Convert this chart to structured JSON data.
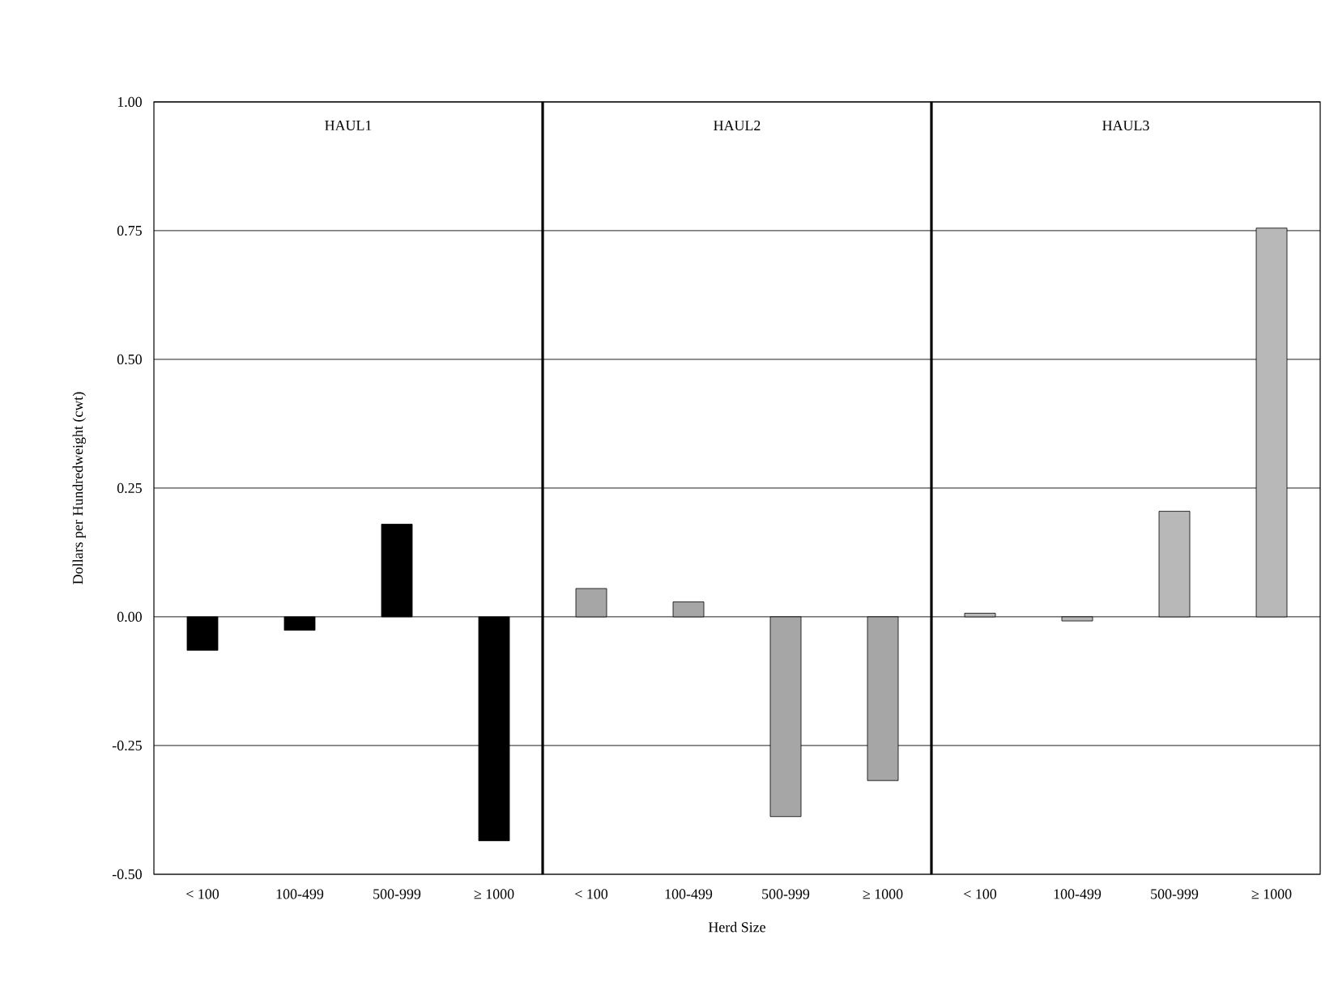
{
  "chart_data": [
    {
      "type": "bar",
      "title": "HAUL1",
      "ylabel": "Dollars  per Hundredweight  (cwt)",
      "categories": [
        "< 100",
        "100-499",
        "500-999",
        "≥ 1000"
      ],
      "values": [
        -0.065,
        -0.026,
        0.18,
        -0.435
      ],
      "color": "#000000",
      "ylim": [
        -0.5,
        1.0
      ],
      "yticks": [
        {
          "value": -0.5,
          "label": "-0.50"
        },
        {
          "value": -0.25,
          "label": "-0.25"
        },
        {
          "value": 0,
          "label": "0.00"
        },
        {
          "value": 0.25,
          "label": "0.25"
        },
        {
          "value": 0.5,
          "label": "0.50"
        },
        {
          "value": 0.75,
          "label": "0.75"
        },
        {
          "value": 1.0,
          "label": "1.00"
        }
      ],
      "grid": "y"
    },
    {
      "type": "bar",
      "title": "HAUL2",
      "xlabel": "Herd Size",
      "categories": [
        "< 100",
        "100-499",
        "500-999",
        "≥ 1000"
      ],
      "values": [
        0.055,
        0.029,
        -0.388,
        -0.318
      ],
      "color": "#a6a6a6",
      "ylim": [
        -0.5,
        1.0
      ],
      "yticks": [
        {
          "value": -0.5,
          "label": null
        },
        {
          "value": -0.25,
          "label": null
        },
        {
          "value": 0,
          "label": null
        },
        {
          "value": 0.25,
          "label": null
        },
        {
          "value": 0.5,
          "label": null
        },
        {
          "value": 0.75,
          "label": null
        },
        {
          "value": 1.0,
          "label": null
        }
      ],
      "grid": "y",
      "tick_labels": "x"
    },
    {
      "type": "bar",
      "title": "HAUL3",
      "categories": [
        "< 100",
        "100-499",
        "500-999",
        "≥ 1000"
      ],
      "values": [
        0.007,
        -0.008,
        0.205,
        0.755
      ],
      "color": "#b8b8b8",
      "ylim": [
        -0.5,
        1.0
      ],
      "yticks": [
        {
          "value": -0.5,
          "label": null
        },
        {
          "value": -0.25,
          "label": null
        },
        {
          "value": 0,
          "label": null
        },
        {
          "value": 0.25,
          "label": null
        },
        {
          "value": 0.5,
          "label": null
        },
        {
          "value": 0.75,
          "label": null
        },
        {
          "value": 1.0,
          "label": null
        }
      ],
      "grid": "y",
      "tick_labels": "x"
    }
  ]
}
